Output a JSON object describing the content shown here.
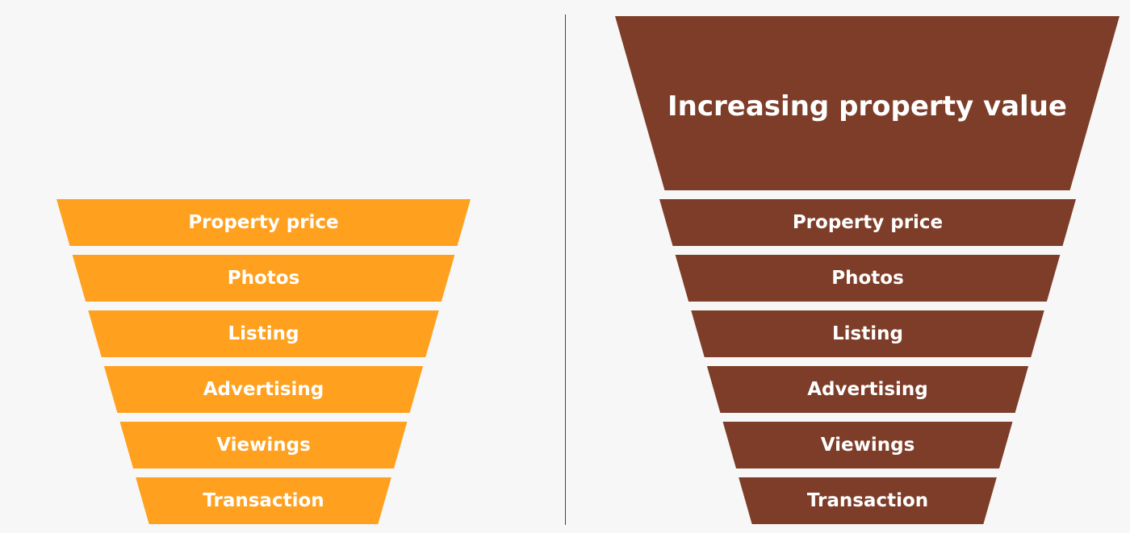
{
  "colors": {
    "left_funnel": "#ffa01f",
    "right_funnel": "#7d3d28",
    "text": "#ffffff",
    "background": "#f7f7f7"
  },
  "left_funnel": {
    "stages": [
      "Property price",
      "Photos",
      "Listing",
      "Advertising",
      "Viewings",
      "Transaction"
    ]
  },
  "right_funnel": {
    "header": "Increasing property value",
    "stages": [
      "Property price",
      "Photos",
      "Listing",
      "Advertising",
      "Viewings",
      "Transaction"
    ]
  }
}
